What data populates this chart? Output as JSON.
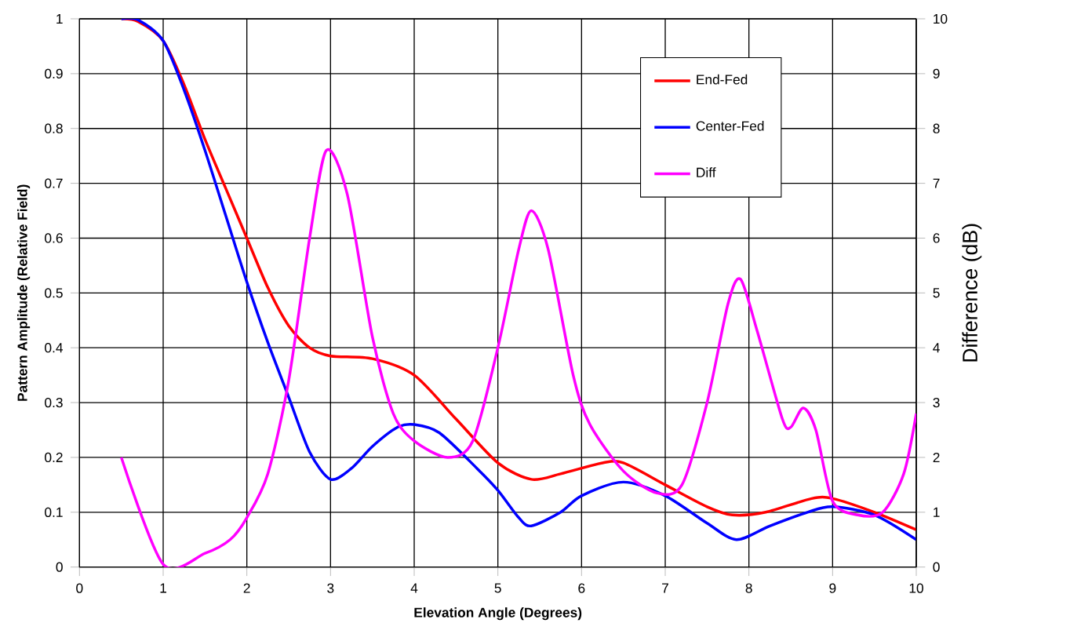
{
  "chart_data": {
    "type": "line",
    "xlabel": "Elevation Angle (Degrees)",
    "ylabel": "Pattern Amplitude (Relative Field)",
    "y2label": "Difference (dB)",
    "xlim": [
      0,
      10
    ],
    "xticks": [
      0,
      1,
      2,
      3,
      4,
      5,
      6,
      7,
      8,
      9,
      10
    ],
    "ylim": [
      0,
      1
    ],
    "yticks": [
      0,
      0.1,
      0.2,
      0.3,
      0.4,
      0.5,
      0.6,
      0.7,
      0.8,
      0.9,
      1
    ],
    "y2lim": [
      0,
      10
    ],
    "y2ticks": [
      0,
      1,
      2,
      3,
      4,
      5,
      6,
      7,
      8,
      9,
      10
    ],
    "grid": true,
    "legend": "top right",
    "marker": "none",
    "line_style": "solid",
    "series": [
      {
        "name": "End-Fed",
        "color": "#ff0000",
        "x": [
          0.5,
          0.7,
          1.0,
          1.25,
          1.5,
          1.75,
          2.0,
          2.25,
          2.5,
          2.75,
          3.0,
          3.5,
          4.0,
          4.5,
          5.0,
          5.4,
          5.75,
          6.25,
          6.5,
          7.0,
          7.5,
          7.8,
          8.2,
          8.75,
          9.0,
          9.5,
          10
        ],
        "values": [
          1.0,
          0.995,
          0.96,
          0.88,
          0.78,
          0.69,
          0.6,
          0.51,
          0.44,
          0.4,
          0.385,
          0.38,
          0.35,
          0.27,
          0.19,
          0.16,
          0.17,
          0.19,
          0.19,
          0.15,
          0.11,
          0.095,
          0.1,
          0.125,
          0.125,
          0.1,
          0.068
        ]
      },
      {
        "name": "Center-Fed",
        "color": "#0000ff",
        "x": [
          0.5,
          0.7,
          1.0,
          1.25,
          1.5,
          1.75,
          2.0,
          2.25,
          2.5,
          2.75,
          3.0,
          3.25,
          3.5,
          3.8,
          4.0,
          4.3,
          4.75,
          5.0,
          5.25,
          5.4,
          5.75,
          6.0,
          6.5,
          7.0,
          7.5,
          7.85,
          8.25,
          8.7,
          9.0,
          9.5,
          10
        ],
        "values": [
          1.0,
          0.998,
          0.96,
          0.87,
          0.76,
          0.64,
          0.52,
          0.41,
          0.31,
          0.21,
          0.16,
          0.18,
          0.22,
          0.255,
          0.26,
          0.245,
          0.18,
          0.14,
          0.09,
          0.075,
          0.1,
          0.13,
          0.155,
          0.13,
          0.08,
          0.05,
          0.075,
          0.1,
          0.11,
          0.095,
          0.05
        ]
      },
      {
        "name": "Diff",
        "color": "#ff00ff",
        "axis": "y2",
        "x": [
          0.5,
          1.0,
          1.5,
          1.8,
          2.0,
          2.25,
          2.5,
          2.75,
          2.95,
          3.2,
          3.5,
          3.75,
          4.0,
          4.4,
          4.7,
          5.0,
          5.25,
          5.4,
          5.6,
          5.9,
          6.1,
          6.5,
          6.9,
          7.2,
          7.5,
          7.75,
          7.9,
          8.1,
          8.4,
          8.5,
          8.65,
          8.8,
          9.0,
          9.3,
          9.6,
          9.85,
          10
        ],
        "values": [
          2.0,
          0.05,
          0.25,
          0.5,
          0.9,
          1.7,
          3.4,
          6.0,
          7.6,
          6.8,
          4.2,
          2.8,
          2.3,
          2.0,
          2.3,
          4.0,
          5.8,
          6.5,
          5.8,
          3.5,
          2.6,
          1.75,
          1.35,
          1.5,
          3.0,
          4.8,
          5.25,
          4.3,
          2.7,
          2.55,
          2.9,
          2.5,
          1.2,
          0.95,
          1.0,
          1.7,
          2.8
        ]
      }
    ]
  }
}
